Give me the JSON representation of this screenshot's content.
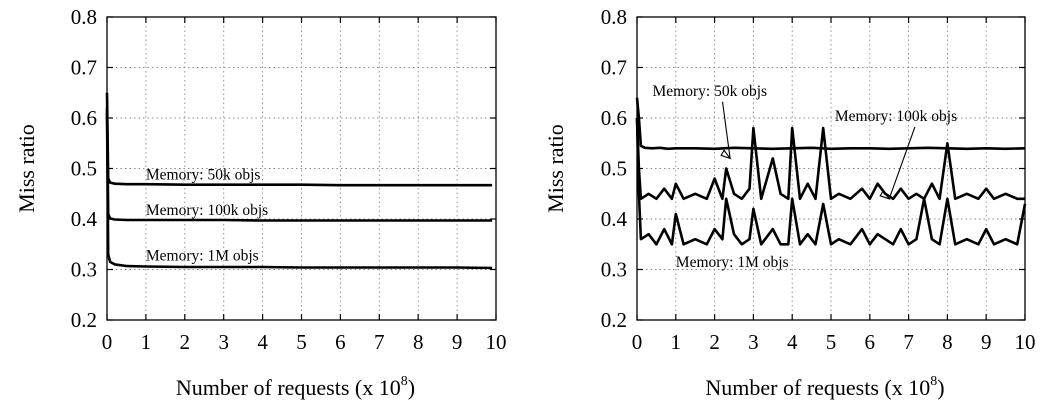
{
  "chart_data": [
    {
      "type": "line",
      "xlabel": "Number of requests (x 10",
      "xlabel_sup": "8",
      "xlabel_close": ")",
      "ylabel": "Miss ratio",
      "xlim": [
        0,
        10
      ],
      "ylim": [
        0.2,
        0.8
      ],
      "x_ticks": [
        "0",
        "1",
        "2",
        "3",
        "4",
        "5",
        "6",
        "7",
        "8",
        "9",
        "10"
      ],
      "y_ticks": [
        "0.2",
        "0.3",
        "0.4",
        "0.5",
        "0.6",
        "0.7",
        "0.8"
      ],
      "grid": true,
      "annotations": [
        {
          "text": "Memory: 50k objs",
          "x": 1.0,
          "y": 0.478
        },
        {
          "text": "Memory: 100k objs",
          "x": 1.0,
          "y": 0.408
        },
        {
          "text": "Memory: 1M objs",
          "x": 1.0,
          "y": 0.318
        }
      ],
      "series": [
        {
          "x": [
            0,
            0.03,
            0.08,
            0.2,
            0.5,
            1,
            2,
            3,
            4,
            5,
            6,
            7,
            8,
            9,
            9.9
          ],
          "y": [
            0.65,
            0.48,
            0.472,
            0.47,
            0.469,
            0.469,
            0.468,
            0.468,
            0.468,
            0.468,
            0.467,
            0.467,
            0.467,
            0.467,
            0.467
          ]
        },
        {
          "x": [
            0,
            0.03,
            0.08,
            0.2,
            0.5,
            1,
            2,
            3,
            4,
            5,
            6,
            7,
            8,
            9,
            9.9
          ],
          "y": [
            0.62,
            0.41,
            0.401,
            0.399,
            0.398,
            0.398,
            0.398,
            0.398,
            0.397,
            0.397,
            0.397,
            0.397,
            0.397,
            0.397,
            0.397
          ]
        },
        {
          "x": [
            0,
            0.03,
            0.08,
            0.2,
            0.5,
            1,
            2,
            3,
            4,
            5,
            6,
            7,
            8,
            9,
            9.9
          ],
          "y": [
            0.61,
            0.33,
            0.315,
            0.31,
            0.307,
            0.306,
            0.305,
            0.305,
            0.305,
            0.304,
            0.304,
            0.304,
            0.304,
            0.304,
            0.303
          ]
        }
      ]
    },
    {
      "type": "line",
      "xlabel": "Number of requests (x 10",
      "xlabel_sup": "8",
      "xlabel_close": ")",
      "ylabel": "Miss ratio",
      "xlim": [
        0,
        10
      ],
      "ylim": [
        0.2,
        0.8
      ],
      "x_ticks": [
        "0",
        "1",
        "2",
        "3",
        "4",
        "5",
        "6",
        "7",
        "8",
        "9",
        "10"
      ],
      "y_ticks": [
        "0.2",
        "0.3",
        "0.4",
        "0.5",
        "0.6",
        "0.7",
        "0.8"
      ],
      "grid": true,
      "annotations": [
        {
          "text": "Memory: 50k objs",
          "x": 0.4,
          "y": 0.644,
          "point_x": 2.4,
          "point_y": 0.52
        },
        {
          "text": "Memory: 100k objs",
          "x": 5.1,
          "y": 0.594,
          "point_x": 6.5,
          "point_y": 0.44
        },
        {
          "text": "Memory: 1M objs",
          "x": 1.0,
          "y": 0.305
        }
      ],
      "series": [
        {
          "x": [
            0,
            0.05,
            0.1,
            0.2,
            0.4,
            0.6,
            0.8,
            1,
            1.5,
            2,
            2.5,
            3,
            3.5,
            4,
            4.5,
            5,
            5.5,
            6,
            6.5,
            7,
            7.5,
            8,
            8.5,
            9,
            9.5,
            10
          ],
          "y": [
            0.64,
            0.6,
            0.545,
            0.541,
            0.54,
            0.541,
            0.539,
            0.54,
            0.54,
            0.539,
            0.541,
            0.54,
            0.539,
            0.54,
            0.541,
            0.539,
            0.54,
            0.54,
            0.539,
            0.54,
            0.541,
            0.54,
            0.539,
            0.54,
            0.539,
            0.54
          ]
        },
        {
          "x": [
            0,
            0.05,
            0.1,
            0.3,
            0.5,
            0.7,
            0.9,
            1.0,
            1.2,
            1.5,
            1.8,
            2.0,
            2.2,
            2.3,
            2.5,
            2.7,
            2.9,
            3.0,
            3.2,
            3.5,
            3.7,
            3.9,
            4.0,
            4.2,
            4.4,
            4.6,
            4.8,
            5.0,
            5.2,
            5.5,
            5.8,
            6.0,
            6.2,
            6.4,
            6.6,
            6.8,
            7.0,
            7.2,
            7.4,
            7.6,
            7.8,
            8.0,
            8.2,
            8.5,
            8.8,
            9.0,
            9.2,
            9.5,
            9.8,
            10
          ],
          "y": [
            0.6,
            0.5,
            0.44,
            0.45,
            0.44,
            0.46,
            0.44,
            0.47,
            0.44,
            0.45,
            0.44,
            0.48,
            0.44,
            0.5,
            0.45,
            0.44,
            0.46,
            0.58,
            0.44,
            0.52,
            0.45,
            0.44,
            0.58,
            0.44,
            0.47,
            0.44,
            0.58,
            0.44,
            0.45,
            0.44,
            0.46,
            0.44,
            0.47,
            0.45,
            0.44,
            0.46,
            0.44,
            0.45,
            0.44,
            0.47,
            0.44,
            0.55,
            0.44,
            0.45,
            0.44,
            0.46,
            0.44,
            0.45,
            0.44,
            0.44
          ]
        },
        {
          "x": [
            0,
            0.05,
            0.1,
            0.3,
            0.5,
            0.7,
            0.9,
            1.0,
            1.2,
            1.5,
            1.8,
            2.0,
            2.2,
            2.3,
            2.5,
            2.7,
            2.9,
            3.0,
            3.2,
            3.5,
            3.7,
            3.9,
            4.0,
            4.2,
            4.4,
            4.6,
            4.8,
            5.0,
            5.2,
            5.5,
            5.8,
            6.0,
            6.2,
            6.4,
            6.6,
            6.8,
            7.0,
            7.2,
            7.4,
            7.6,
            7.8,
            8.0,
            8.2,
            8.5,
            8.8,
            9.0,
            9.2,
            9.5,
            9.8,
            10
          ],
          "y": [
            0.6,
            0.45,
            0.36,
            0.37,
            0.35,
            0.38,
            0.35,
            0.41,
            0.35,
            0.36,
            0.35,
            0.38,
            0.36,
            0.44,
            0.37,
            0.35,
            0.36,
            0.42,
            0.35,
            0.38,
            0.35,
            0.35,
            0.44,
            0.35,
            0.37,
            0.35,
            0.43,
            0.35,
            0.36,
            0.35,
            0.38,
            0.35,
            0.37,
            0.36,
            0.35,
            0.38,
            0.35,
            0.36,
            0.44,
            0.36,
            0.35,
            0.44,
            0.35,
            0.36,
            0.35,
            0.38,
            0.35,
            0.36,
            0.35,
            0.43
          ]
        }
      ]
    }
  ]
}
